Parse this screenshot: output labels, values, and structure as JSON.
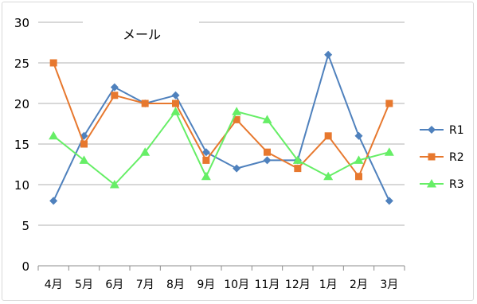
{
  "chart_data": {
    "type": "line",
    "title": "メール",
    "xlabel": "",
    "ylabel": "",
    "ylim": [
      0,
      30
    ],
    "yticks": [
      0,
      5,
      10,
      15,
      20,
      25,
      30
    ],
    "grid": true,
    "legend_position": "right",
    "categories": [
      "4月",
      "5月",
      "6月",
      "7月",
      "8月",
      "9月",
      "10月",
      "11月",
      "12月",
      "1月",
      "2月",
      "3月"
    ],
    "series": [
      {
        "name": "R1",
        "color": "#4f81bd",
        "marker": "diamond",
        "values": [
          8,
          16,
          22,
          20,
          21,
          14,
          12,
          13,
          13,
          26,
          16,
          8
        ]
      },
      {
        "name": "R2",
        "color": "#e7782e",
        "marker": "square",
        "values": [
          25,
          15,
          21,
          20,
          20,
          13,
          18,
          14,
          12,
          16,
          11,
          20
        ]
      },
      {
        "name": "R3",
        "color": "#66ee66",
        "marker": "triangle",
        "values": [
          16,
          13,
          10,
          14,
          19,
          11,
          19,
          18,
          13,
          11,
          13,
          14
        ]
      }
    ]
  }
}
